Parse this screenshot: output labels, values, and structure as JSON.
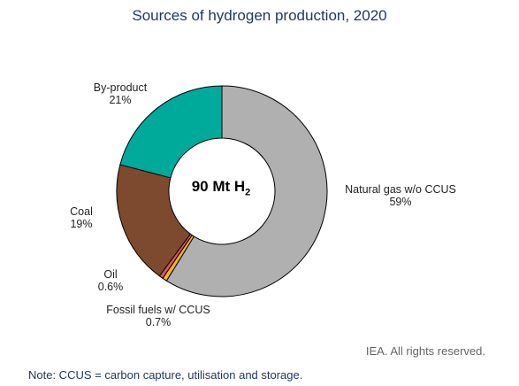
{
  "chart_data": {
    "type": "pie",
    "variant": "donut",
    "title": "Sources of hydrogen production, 2020",
    "center_label": {
      "main": "90 Mt H",
      "subscript": "2"
    },
    "slices": [
      {
        "label": "Natural gas w/o CCUS",
        "value": 59,
        "display": "59%",
        "color": "#b0b0b0"
      },
      {
        "label": "Fossil fuels w/ CCUS",
        "value": 0.7,
        "display": "0.7%",
        "color": "#f0b323"
      },
      {
        "label": "Oil",
        "value": 0.6,
        "display": "0.6%",
        "color": "#e0525e"
      },
      {
        "label": "Coal",
        "value": 19,
        "display": "19%",
        "color": "#7d4a2f"
      },
      {
        "label": "By-product",
        "value": 21,
        "display": "21%",
        "color": "#00aa9a"
      }
    ]
  },
  "footer": {
    "rights": "IEA. All rights reserved.",
    "note": "Note: CCUS = carbon capture, utilisation and storage."
  }
}
